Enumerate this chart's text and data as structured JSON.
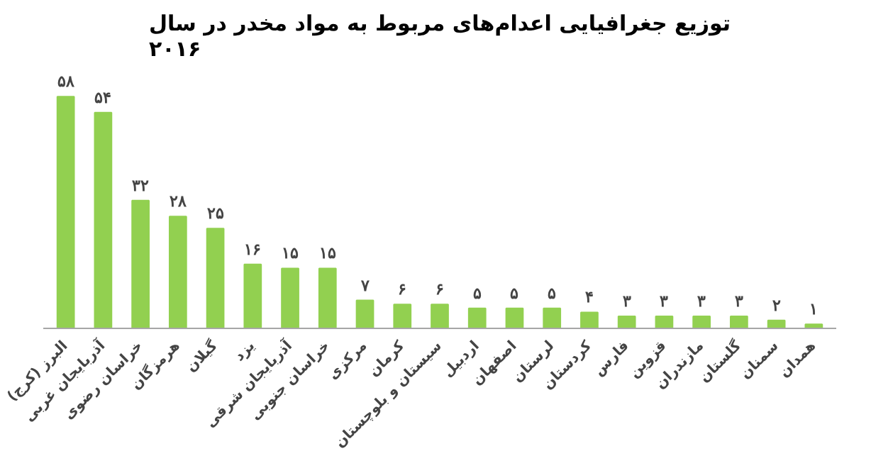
{
  "chart_data": {
    "type": "bar",
    "title": "توزیع جغرافیایی اعدام‌های مربوط به مواد مخدر در سال\n۲۰۱۶",
    "categories": [
      "البرز (کرج)",
      "آذربایجان غربی",
      "خراسان رضوی",
      "هرمزگان",
      "گیلان",
      "یزد",
      "آذربایجان شرقی",
      "خراسان جنوبی",
      "مرکزی",
      "کرمان",
      "سیستان و بلوچستان",
      "اردبیل",
      "اصفهان",
      "لرستان",
      "کردستان",
      "فارس",
      "قزوین",
      "مازندران",
      "گلستان",
      "سمنان",
      "همدان"
    ],
    "values": [
      58,
      54,
      32,
      28,
      25,
      16,
      15,
      15,
      7,
      6,
      6,
      5,
      5,
      5,
      4,
      3,
      3,
      3,
      3,
      2,
      1
    ],
    "value_labels": [
      "۵۸",
      "۵۴",
      "۳۲",
      "۲۸",
      "۲۵",
      "۱۶",
      "۱۵",
      "۱۵",
      "۷",
      "۶",
      "۶",
      "۵",
      "۵",
      "۵",
      "۴",
      "۳",
      "۳",
      "۳",
      "۳",
      "۲",
      "۱"
    ],
    "color": "#92d050",
    "grid": false,
    "tick_labels": "x"
  }
}
